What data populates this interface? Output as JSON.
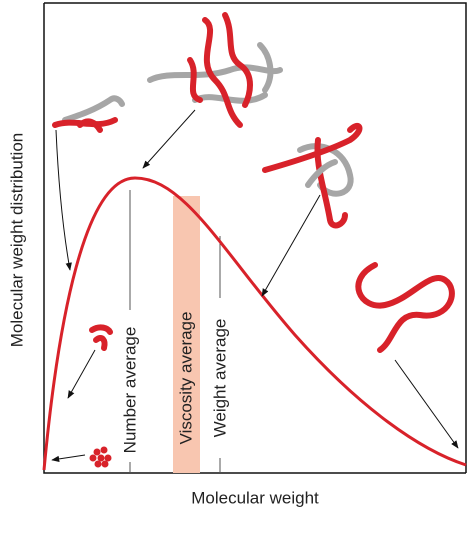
{
  "axes": {
    "y_label": "Molecular weight distribution",
    "x_label": "Molecular weight"
  },
  "markers": [
    {
      "label": "Number average"
    },
    {
      "label": "Viscosity average"
    },
    {
      "label": "Weight average"
    }
  ]
}
